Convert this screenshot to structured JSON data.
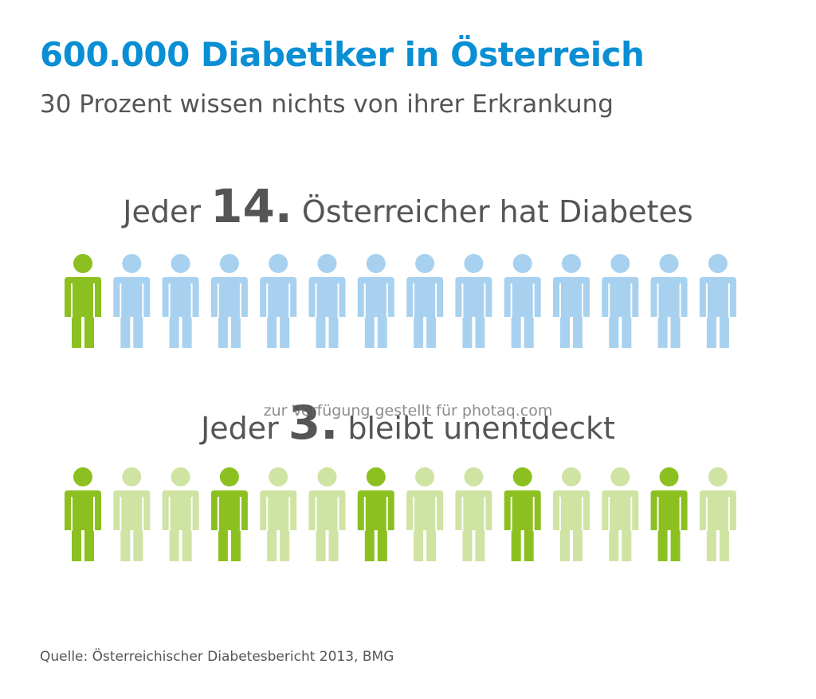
{
  "header": {
    "title": "600.000 Diabetiker in Österreich",
    "subtitle": "30 Prozent wissen nichts von ihrer Erkrankung"
  },
  "chart_data": [
    {
      "type": "pictogram",
      "title": "Jeder 14. Österreicher hat Diabetes",
      "headline": {
        "prefix": "Jeder ",
        "number": "14.",
        "suffix": " Österreicher hat Diabetes"
      },
      "total": 14,
      "highlighted_indices": [
        0
      ],
      "colors": {
        "highlight": "#8cc021",
        "base": "#a7d1ef"
      }
    },
    {
      "type": "pictogram",
      "title": "Jeder 3. bleibt unentdeckt",
      "headline": {
        "prefix": "Jeder ",
        "number": "3.",
        "suffix": " bleibt unentdeckt"
      },
      "total": 14,
      "highlighted_indices": [
        0,
        3,
        6,
        9,
        12
      ],
      "colors": {
        "highlight": "#8cc021",
        "base": "#cfe3a3"
      }
    }
  ],
  "watermark": "zur Verfügung gestellt für photaq.com",
  "source": "Quelle: Österreichischer Diabetesbericht 2013, BMG"
}
